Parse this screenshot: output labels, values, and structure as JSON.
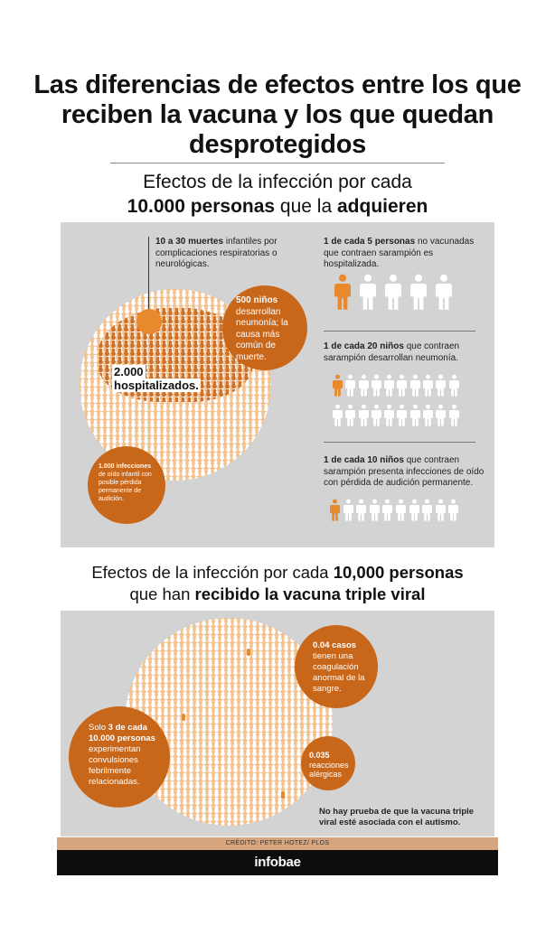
{
  "title": "Las diferencias de efectos entre los que reciben la vacuna y los que quedan desprotegidos",
  "section1": {
    "subtitle_a": "Efectos de la infección por cada",
    "subtitle_b_bold1": "10.000 personas",
    "subtitle_b_mid": " que la ",
    "subtitle_b_bold2": "adquieren",
    "deaths_bold": "10 a 30 muertes",
    "deaths_text": " infantiles por complicaciones respiratorias o neurológicas.",
    "pneumonia_bold": "500 niños",
    "pneumonia_text": "desarrollan neumonía; la causa más común de muerte.",
    "hospital_line1": "2.000",
    "hospital_line2": "hospitalizados.",
    "ear_bold": "1.000 infecciones",
    "ear_text": "de oído infantil con posible pérdida permanente de audición.",
    "stat1_bold": "1 de cada 5 personas",
    "stat1_text": " no vacunadas que contraen sarampión es hospitalizada.",
    "stat2_bold": "1 de cada 20 niños",
    "stat2_text": " que contraen sarampión desarrollan neumonía.",
    "stat3_bold": "1 de cada 10 niños",
    "stat3_text": " que contraen sarampión presenta infecciones de oído con pérdida de audición permanente."
  },
  "section2": {
    "subtitle_a_pre": "Efectos de la infección por cada ",
    "subtitle_a_bold": "10,000 personas",
    "subtitle_b_pre": "que han ",
    "subtitle_b_bold": "recibido la vacuna triple viral",
    "blood_bold": "0.04 casos",
    "blood_text": "tienen una coagulación anormal de la sangre.",
    "convulsions_pre": "Solo ",
    "convulsions_bold": "3 de cada 10.000 personas",
    "convulsions_text": "experimentan convulsiones febrilmente relacionadas.",
    "allergy_bold": "0.035",
    "allergy_text": "reacciones alérgicas",
    "autism_note": "No hay prueba de que la vacuna triple viral esté asociada con el autismo."
  },
  "credit": "CRÉDITO: PETER HOTEZ/ PLOS",
  "brand": "infobae",
  "icons": {
    "person_icon": "person-icon",
    "highlight_color": "#e8892e",
    "plain_color": "#ffffff",
    "bubble_color": "#c8661a",
    "circle_color": "#f2c391",
    "panel_color": "#d3d3d3"
  }
}
